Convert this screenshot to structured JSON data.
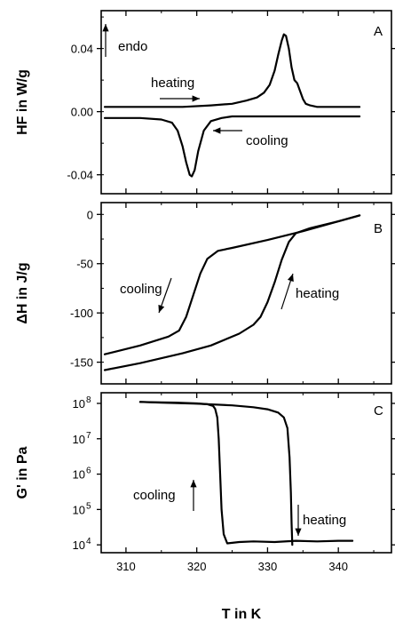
{
  "figure": {
    "xlabel": "T in K",
    "x_ticks": [
      "310",
      "320",
      "330",
      "340"
    ]
  },
  "chart_data": [
    {
      "type": "line",
      "panel": "A",
      "ylabel": "HF in W/g",
      "xlim": [
        306.5,
        347.5
      ],
      "ylim": [
        -0.052,
        0.064
      ],
      "y_ticks": [
        {
          "value": 0.04,
          "label": "0.04"
        },
        {
          "value": 0.0,
          "label": "0.00"
        },
        {
          "value": -0.04,
          "label": "-0.04"
        }
      ],
      "annotations": [
        "endo",
        "heating",
        "cooling"
      ],
      "series": [
        {
          "id": "heating",
          "x": [
            307,
            312,
            318,
            322,
            325,
            327,
            328.5,
            329.5,
            330.3,
            331,
            331.5,
            332,
            332.3,
            332.6,
            333,
            333.4,
            333.8,
            334.2,
            334.6,
            335,
            335.4,
            336,
            337,
            339,
            343
          ],
          "y": [
            0.003,
            0.003,
            0.003,
            0.004,
            0.005,
            0.007,
            0.009,
            0.012,
            0.017,
            0.026,
            0.036,
            0.045,
            0.049,
            0.048,
            0.04,
            0.028,
            0.02,
            0.018,
            0.013,
            0.008,
            0.005,
            0.004,
            0.003,
            0.003,
            0.003
          ]
        },
        {
          "id": "cooling",
          "x": [
            307,
            312,
            315,
            316.5,
            317.3,
            318,
            318.5,
            319,
            319.3,
            319.7,
            320.2,
            321,
            322,
            323.5,
            325,
            328,
            333,
            338,
            343
          ],
          "y": [
            -0.004,
            -0.004,
            -0.005,
            -0.007,
            -0.012,
            -0.022,
            -0.032,
            -0.04,
            -0.041,
            -0.037,
            -0.025,
            -0.012,
            -0.006,
            -0.004,
            -0.003,
            -0.003,
            -0.003,
            -0.003,
            -0.003
          ]
        }
      ]
    },
    {
      "type": "line",
      "panel": "B",
      "ylabel": "ΔH in J/g",
      "xlim": [
        306.5,
        347.5
      ],
      "ylim": [
        -172,
        12
      ],
      "y_ticks": [
        {
          "value": 0,
          "label": "0"
        },
        {
          "value": -50,
          "label": "-50"
        },
        {
          "value": -100,
          "label": "-100"
        },
        {
          "value": -150,
          "label": "-150"
        }
      ],
      "annotations": [
        "cooling",
        "heating"
      ],
      "series": [
        {
          "id": "cooling",
          "x": [
            307,
            312,
            316,
            317.5,
            318.5,
            319.5,
            320.5,
            321.5,
            323,
            325,
            330,
            335,
            340,
            343
          ],
          "y": [
            -142,
            -133,
            -124,
            -118,
            -104,
            -82,
            -60,
            -45,
            -37,
            -34,
            -26,
            -17,
            -7,
            -1
          ]
        },
        {
          "id": "heating",
          "x": [
            307,
            312,
            318,
            322,
            326,
            328,
            329,
            330,
            331,
            332,
            333,
            334,
            336,
            340,
            343
          ],
          "y": [
            -158,
            -151,
            -141,
            -133,
            -121,
            -112,
            -104,
            -89,
            -69,
            -46,
            -28,
            -19,
            -14,
            -7,
            -1
          ]
        }
      ]
    },
    {
      "type": "line",
      "panel": "C",
      "ylabel": "G' in Pa",
      "yscale": "log",
      "xlim": [
        306.5,
        347.5
      ],
      "ylim": [
        6000,
        200000000
      ],
      "y_ticks": [
        {
          "value": 100000000,
          "label": "10",
          "exp": "8"
        },
        {
          "value": 10000000,
          "label": "10",
          "exp": "7"
        },
        {
          "value": 1000000,
          "label": "10",
          "exp": "6"
        },
        {
          "value": 100000,
          "label": "10",
          "exp": "5"
        },
        {
          "value": 10000,
          "label": "10",
          "exp": "4"
        }
      ],
      "annotations": [
        "cooling",
        "heating"
      ],
      "series": [
        {
          "id": "heating",
          "x": [
            312,
            315,
            320,
            325,
            328,
            330,
            331.5,
            332.3,
            332.8,
            333.1,
            333.3,
            333.4,
            333.5
          ],
          "y": [
            110000000,
            105000000,
            98000000,
            88000000,
            78000000,
            68000000,
            55000000,
            40000000,
            20000000,
            3000000,
            300000,
            40000,
            10000
          ]
        },
        {
          "id": "cooling",
          "x": [
            342,
            340,
            337,
            334,
            331,
            328,
            326,
            324.3,
            323.8,
            323.5,
            323.3,
            323.1,
            322.9,
            322.6,
            322.3,
            321.5,
            320,
            317,
            314,
            312
          ],
          "y": [
            13000,
            13000,
            12500,
            13000,
            12000,
            12500,
            12000,
            11000,
            20000,
            100000,
            1000000,
            10000000,
            40000000,
            70000000,
            85000000,
            95000000,
            100000000,
            105000000,
            108000000,
            110000000
          ]
        }
      ]
    }
  ]
}
